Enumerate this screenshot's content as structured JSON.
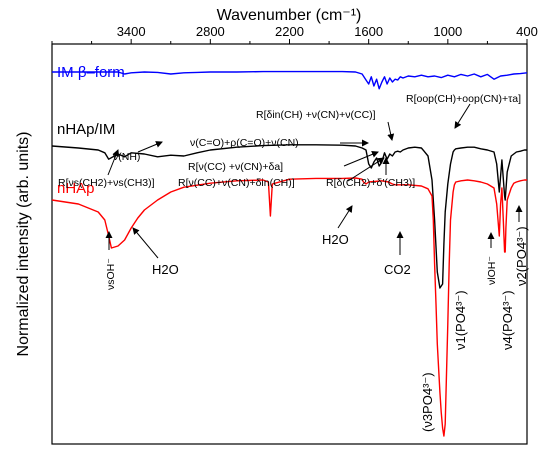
{
  "chart_data": {
    "type": "line",
    "title": "",
    "xlabel": "Wavenumber (cm⁻¹)",
    "ylabel": "Normalized intensity (arb. units)",
    "xlim": [
      4000,
      400
    ],
    "x_reversed": true,
    "x_ticks": [
      3400,
      2800,
      2200,
      1600,
      1000,
      400
    ],
    "grid": false,
    "legend": "none",
    "series": [
      {
        "name": "IM β–form",
        "color": "#0000ff",
        "x": [
          4000,
          3700,
          3500,
          3450,
          3400,
          3300,
          3200,
          3100,
          3000,
          2900,
          2800,
          2600,
          2400,
          2200,
          2000,
          1800,
          1700,
          1650,
          1620,
          1600,
          1580,
          1560,
          1540,
          1520,
          1500,
          1480,
          1460,
          1440,
          1420,
          1400,
          1380,
          1360,
          1340,
          1300,
          1250,
          1200,
          1150,
          1100,
          1050,
          1000,
          950,
          900,
          850,
          800,
          750,
          700,
          650,
          600,
          550,
          500,
          450,
          400
        ],
        "y": [
          0.93,
          0.93,
          0.93,
          0.925,
          0.928,
          0.93,
          0.929,
          0.925,
          0.928,
          0.929,
          0.93,
          0.93,
          0.931,
          0.931,
          0.931,
          0.931,
          0.93,
          0.925,
          0.91,
          0.9,
          0.918,
          0.895,
          0.912,
          0.888,
          0.905,
          0.918,
          0.9,
          0.915,
          0.905,
          0.912,
          0.91,
          0.918,
          0.915,
          0.92,
          0.918,
          0.922,
          0.918,
          0.92,
          0.916,
          0.922,
          0.918,
          0.924,
          0.92,
          0.925,
          0.918,
          0.924,
          0.912,
          0.92,
          0.922,
          0.925,
          0.926,
          0.928
        ]
      },
      {
        "name": "nHAp/IM",
        "color": "#000000",
        "x": [
          4000,
          3800,
          3650,
          3600,
          3570,
          3500,
          3450,
          3400,
          3300,
          3200,
          3100,
          3000,
          2900,
          2800,
          2600,
          2400,
          2200,
          2000,
          1800,
          1700,
          1650,
          1620,
          1600,
          1580,
          1560,
          1540,
          1520,
          1500,
          1480,
          1460,
          1440,
          1420,
          1400,
          1380,
          1360,
          1340,
          1300,
          1250,
          1200,
          1180,
          1150,
          1120,
          1100,
          1080,
          1060,
          1040,
          1030,
          1020,
          1000,
          980,
          960,
          950,
          940,
          900,
          850,
          800,
          750,
          700,
          650,
          630,
          610,
          600,
          590,
          570,
          565,
          550,
          520,
          500,
          480,
          450,
          420,
          400
        ],
        "y": [
          0.745,
          0.74,
          0.735,
          0.728,
          0.712,
          0.725,
          0.718,
          0.728,
          0.725,
          0.718,
          0.722,
          0.72,
          0.728,
          0.735,
          0.742,
          0.746,
          0.748,
          0.748,
          0.747,
          0.745,
          0.74,
          0.735,
          0.7,
          0.69,
          0.705,
          0.715,
          0.695,
          0.705,
          0.728,
          0.712,
          0.725,
          0.72,
          0.73,
          0.732,
          0.73,
          0.735,
          0.74,
          0.742,
          0.74,
          0.732,
          0.72,
          0.66,
          0.56,
          0.43,
          0.39,
          0.4,
          0.5,
          0.58,
          0.65,
          0.7,
          0.73,
          0.735,
          0.738,
          0.74,
          0.742,
          0.742,
          0.738,
          0.735,
          0.73,
          0.7,
          0.63,
          0.67,
          0.71,
          0.62,
          0.61,
          0.68,
          0.72,
          0.725,
          0.73,
          0.732,
          0.735,
          0.735
        ]
      },
      {
        "name": "nHAp",
        "color": "#ff0000",
        "x": [
          4000,
          3800,
          3650,
          3600,
          3570,
          3550,
          3500,
          3450,
          3400,
          3350,
          3300,
          3200,
          3100,
          3000,
          2800,
          2600,
          2400,
          2360,
          2345,
          2330,
          2200,
          2000,
          1800,
          1700,
          1650,
          1640,
          1620,
          1600,
          1500,
          1450,
          1420,
          1400,
          1300,
          1200,
          1150,
          1120,
          1110,
          1100,
          1090,
          1080,
          1060,
          1050,
          1040,
          1030,
          1020,
          1000,
          990,
          980,
          960,
          950,
          940,
          900,
          850,
          800,
          750,
          700,
          650,
          630,
          610,
          600,
          590,
          580,
          570,
          565,
          560,
          550,
          520,
          500,
          480,
          450,
          420,
          400
        ],
        "y": [
          0.61,
          0.6,
          0.58,
          0.56,
          0.52,
          0.49,
          0.495,
          0.51,
          0.54,
          0.565,
          0.585,
          0.61,
          0.63,
          0.642,
          0.652,
          0.658,
          0.66,
          0.655,
          0.57,
          0.65,
          0.662,
          0.664,
          0.664,
          0.665,
          0.662,
          0.655,
          0.65,
          0.655,
          0.658,
          0.655,
          0.65,
          0.648,
          0.648,
          0.645,
          0.638,
          0.62,
          0.56,
          0.45,
          0.35,
          0.25,
          0.13,
          0.08,
          0.04,
          0.02,
          0.05,
          0.3,
          0.45,
          0.56,
          0.63,
          0.648,
          0.655,
          0.658,
          0.66,
          0.658,
          0.655,
          0.65,
          0.64,
          0.6,
          0.52,
          0.6,
          0.64,
          0.56,
          0.48,
          0.48,
          0.54,
          0.61,
          0.64,
          0.652,
          0.655,
          0.658,
          0.66,
          0.66
        ]
      }
    ],
    "series_labels": [
      "IM β–form",
      "nHAp/IM",
      "nHAp"
    ],
    "annotations": [
      "R[oop(CH)+oop(CN)+τa]",
      "R[δin(CH) +ν(CN)+ν(CC)]",
      "ν(NH)",
      "ν(C=O)+ρ(C=O)+ν(CN)",
      "R[ν(CC) +ν(CN)+δa]",
      "R[ν(CC)+ν(CN)+δin(CH)]",
      "R[νs(CH2)+νs(CH3)]",
      "R[δ(CH2)+δ′(CH3)]",
      "H2O",
      "CO2",
      "νsOH⁻",
      "ν1(PO4³⁻)",
      "νlOH⁻",
      "ν4(PO4³⁻)",
      "ν2(PO4³⁻)",
      "(ν3PO4³⁻)"
    ]
  }
}
